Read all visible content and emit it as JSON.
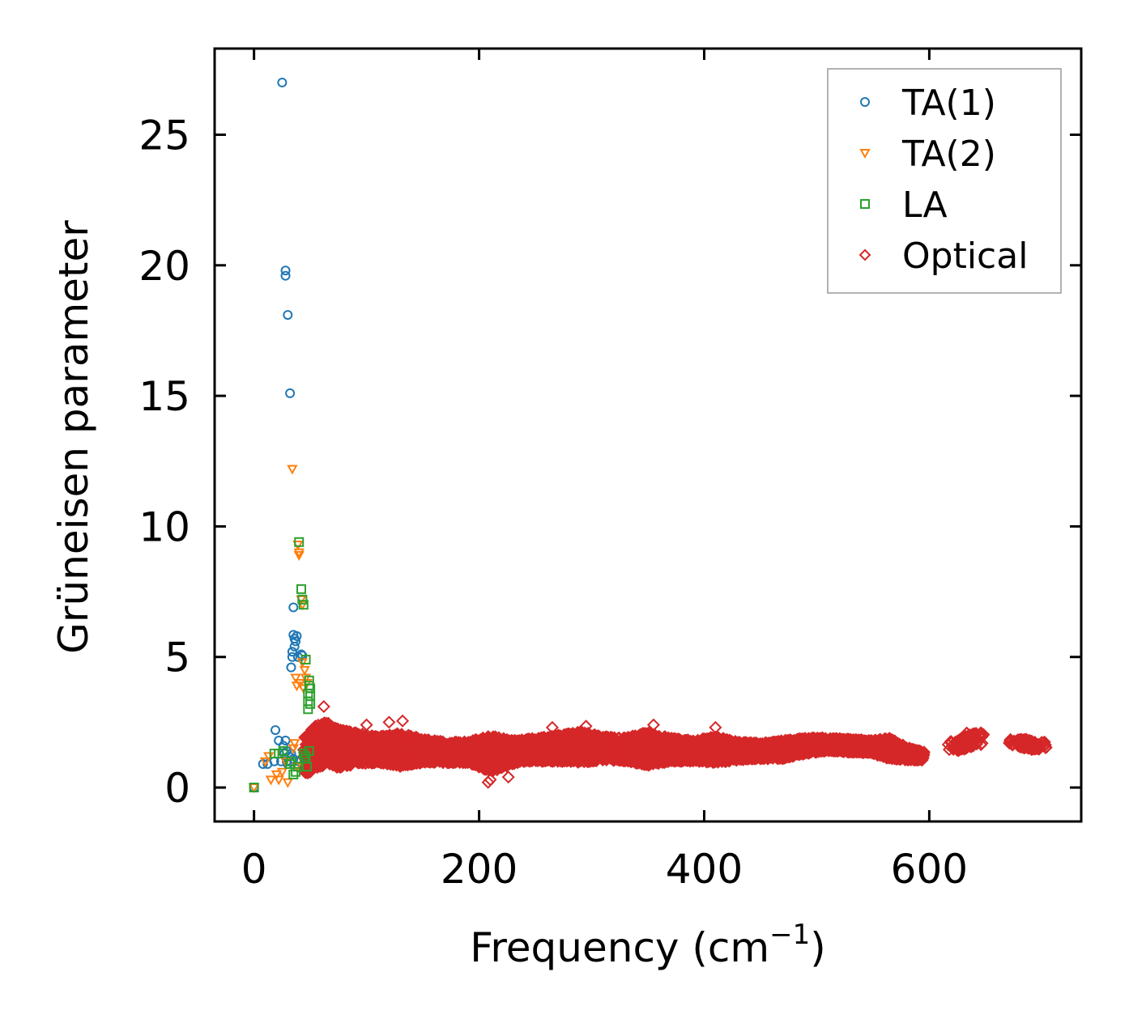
{
  "chart_data": {
    "type": "scatter",
    "title": "",
    "xlabel": "Frequency (cm",
    "xlabel_sup": "−1",
    "xlabel_end": ")",
    "ylabel": "Grüneisen parameter",
    "xlim": [
      -35,
      735
    ],
    "ylim": [
      -1.3,
      28.3
    ],
    "x_ticks": [
      0,
      200,
      400,
      600
    ],
    "x_tick_labels": [
      "0",
      "200",
      "400",
      "600"
    ],
    "y_ticks": [
      0,
      5,
      10,
      15,
      20,
      25
    ],
    "y_tick_labels": [
      "0",
      "5",
      "10",
      "15",
      "20",
      "25"
    ],
    "legend_position": "top-right",
    "series": [
      {
        "name": "TA(1)",
        "marker": "circle",
        "color": "#1f77b4",
        "points": [
          [
            0,
            0
          ],
          [
            8,
            0.9
          ],
          [
            12,
            0.9
          ],
          [
            18,
            1.0
          ],
          [
            19,
            2.2
          ],
          [
            22,
            1.8
          ],
          [
            24,
            1.0
          ],
          [
            25,
            27.0
          ],
          [
            26,
            1.6
          ],
          [
            27,
            1.3
          ],
          [
            28,
            19.8
          ],
          [
            28,
            19.6
          ],
          [
            28,
            1.8
          ],
          [
            29,
            1.4
          ],
          [
            29,
            1.0
          ],
          [
            30,
            18.1
          ],
          [
            31,
            1.2
          ],
          [
            32,
            1.0
          ],
          [
            32,
            15.1
          ],
          [
            33,
            1.3
          ],
          [
            33,
            4.6
          ],
          [
            34,
            5.0
          ],
          [
            34,
            5.2
          ],
          [
            35,
            6.9
          ],
          [
            35,
            5.85
          ],
          [
            36,
            5.4
          ],
          [
            36,
            5.7
          ],
          [
            37,
            5.6
          ],
          [
            38,
            5.8
          ],
          [
            39,
            5.0
          ],
          [
            40,
            1.0
          ],
          [
            42,
            5.1
          ],
          [
            43,
            5.05
          ],
          [
            35,
            1.1
          ],
          [
            30,
            0.9
          ]
        ]
      },
      {
        "name": "TA(2)",
        "marker": "triangle-down",
        "color": "#ff7f0e",
        "points": [
          [
            0,
            0
          ],
          [
            10,
            1.0
          ],
          [
            13,
            1.2
          ],
          [
            15,
            0.3
          ],
          [
            20,
            0.5
          ],
          [
            22,
            0.3
          ],
          [
            25,
            0.6
          ],
          [
            28,
            1.0
          ],
          [
            30,
            0.2
          ],
          [
            34,
            12.2
          ],
          [
            37,
            4.2
          ],
          [
            38,
            3.9
          ],
          [
            39,
            9.3
          ],
          [
            40,
            9.0
          ],
          [
            40,
            8.9
          ],
          [
            41,
            4.0
          ],
          [
            42,
            7.2
          ],
          [
            43,
            4.8
          ],
          [
            43,
            7.0
          ],
          [
            44,
            3.8
          ],
          [
            45,
            4.5
          ],
          [
            46,
            4.2
          ],
          [
            47,
            4.0
          ],
          [
            35,
            1.5
          ],
          [
            38,
            0.8
          ],
          [
            36,
            1.7
          ]
        ]
      },
      {
        "name": "LA",
        "marker": "square",
        "color": "#2ca02c",
        "points": [
          [
            0,
            0
          ],
          [
            18,
            1.3
          ],
          [
            22,
            1.3
          ],
          [
            26,
            1.4
          ],
          [
            32,
            0.9
          ],
          [
            33,
            1.0
          ],
          [
            35,
            0.5
          ],
          [
            37,
            0.6
          ],
          [
            39,
            0.8
          ],
          [
            40,
            9.4
          ],
          [
            42,
            7.6
          ],
          [
            43,
            7.2
          ],
          [
            44,
            7.0
          ],
          [
            44,
            1.3
          ],
          [
            45,
            1.1
          ],
          [
            46,
            4.9
          ],
          [
            47,
            0.8
          ],
          [
            48,
            3.0
          ],
          [
            48,
            3.3
          ],
          [
            48,
            3.6
          ],
          [
            49,
            1.4
          ],
          [
            49,
            3.9
          ],
          [
            49,
            4.1
          ],
          [
            50,
            3.2
          ],
          [
            50,
            3.5
          ],
          [
            50,
            3.8
          ],
          [
            46,
            1.2
          ]
        ]
      },
      {
        "name": "Optical",
        "marker": "diamond",
        "color": "#d62728",
        "bands": [
          [
            45,
            1.2,
            1.5
          ],
          [
            55,
            1.6,
            1.7
          ],
          [
            65,
            1.7,
            1.6
          ],
          [
            75,
            1.5,
            1.5
          ],
          [
            90,
            1.5,
            1.2
          ],
          [
            110,
            1.45,
            1.0
          ],
          [
            130,
            1.45,
            1.3
          ],
          [
            150,
            1.4,
            0.9
          ],
          [
            170,
            1.35,
            0.8
          ],
          [
            190,
            1.35,
            0.8
          ],
          [
            205,
            1.3,
            1.3
          ],
          [
            215,
            1.3,
            1.3
          ],
          [
            230,
            1.35,
            0.9
          ],
          [
            250,
            1.45,
            0.9
          ],
          [
            270,
            1.5,
            1.0
          ],
          [
            290,
            1.55,
            1.2
          ],
          [
            310,
            1.5,
            0.9
          ],
          [
            330,
            1.45,
            0.9
          ],
          [
            350,
            1.5,
            1.3
          ],
          [
            370,
            1.45,
            0.9
          ],
          [
            390,
            1.4,
            0.8
          ],
          [
            410,
            1.45,
            1.0
          ],
          [
            430,
            1.4,
            0.7
          ],
          [
            450,
            1.4,
            0.6
          ],
          [
            470,
            1.45,
            0.7
          ],
          [
            490,
            1.6,
            0.6
          ],
          [
            510,
            1.65,
            0.5
          ],
          [
            530,
            1.6,
            0.5
          ],
          [
            550,
            1.55,
            0.5
          ],
          [
            565,
            1.5,
            0.8
          ],
          [
            580,
            1.3,
            0.5
          ],
          [
            595,
            1.2,
            0.3
          ],
          [
            625,
            1.6,
            0.4
          ],
          [
            640,
            1.85,
            0.5
          ],
          [
            680,
            1.7,
            0.3
          ],
          [
            695,
            1.6,
            0.3
          ]
        ],
        "outliers": [
          [
            62,
            3.1
          ],
          [
            100,
            2.4
          ],
          [
            120,
            2.5
          ],
          [
            132,
            2.55
          ],
          [
            265,
            2.3
          ],
          [
            295,
            2.35
          ],
          [
            355,
            2.4
          ],
          [
            410,
            2.3
          ],
          [
            210,
            0.3
          ],
          [
            226,
            0.4
          ],
          [
            208,
            0.2
          ]
        ]
      }
    ]
  }
}
